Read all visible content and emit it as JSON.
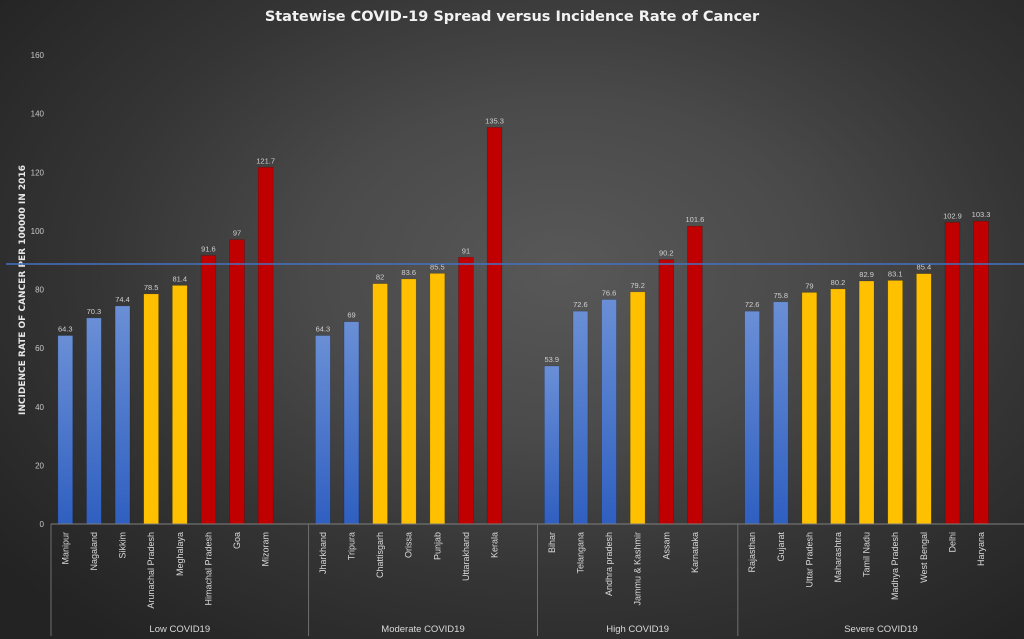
{
  "chart_data": {
    "type": "bar",
    "title": "Statewise COVID-19 Spread versus Incidence Rate of Cancer",
    "xlabel": "",
    "ylabel": "INCIDENCE RATE OF CANCER PER 100000 IN 2016",
    "ylim": [
      0,
      160
    ],
    "yticks": [
      0,
      20,
      40,
      60,
      80,
      100,
      120,
      140,
      160
    ],
    "grid": false,
    "legend": "none",
    "reference_line": {
      "value": 88.7,
      "color": "#4472c4"
    },
    "colors": {
      "blue": "#4472c4",
      "yellow": "#ffc000",
      "red": "#c00000"
    },
    "groups": [
      {
        "name": "Low COVID19",
        "bars": [
          {
            "category": "Manipur",
            "value": 64.3,
            "color": "blue"
          },
          {
            "category": "Nagaland",
            "value": 70.3,
            "color": "blue"
          },
          {
            "category": "Sikkim",
            "value": 74.4,
            "color": "blue"
          },
          {
            "category": "Arunachal Pradesh",
            "value": 78.5,
            "color": "yellow"
          },
          {
            "category": "Meghalaya",
            "value": 81.4,
            "color": "yellow"
          },
          {
            "category": "Himachal Pradesh",
            "value": 91.6,
            "color": "red"
          },
          {
            "category": "Goa",
            "value": 97,
            "color": "red"
          },
          {
            "category": "Mizoram",
            "value": 121.7,
            "color": "red"
          }
        ]
      },
      {
        "name": "Moderate COVID19",
        "bars": [
          {
            "category": "Jharkhand",
            "value": 64.3,
            "color": "blue"
          },
          {
            "category": "Tripura",
            "value": 69,
            "color": "blue"
          },
          {
            "category": "Chattisgarh",
            "value": 82,
            "color": "yellow"
          },
          {
            "category": "Orissa",
            "value": 83.6,
            "color": "yellow"
          },
          {
            "category": "Punjab",
            "value": 85.5,
            "color": "yellow"
          },
          {
            "category": "Uttarakhand",
            "value": 91,
            "color": "red"
          },
          {
            "category": "Kerala",
            "value": 135.3,
            "color": "red"
          }
        ]
      },
      {
        "name": "High COVID19",
        "bars": [
          {
            "category": "Bihar",
            "value": 53.9,
            "color": "blue"
          },
          {
            "category": "Telangana",
            "value": 72.6,
            "color": "blue"
          },
          {
            "category": "Andhra pradesh",
            "value": 76.6,
            "color": "blue"
          },
          {
            "category": "Jammu & Kashmir",
            "value": 79.2,
            "color": "yellow"
          },
          {
            "category": "Assam",
            "value": 90.2,
            "color": "red"
          },
          {
            "category": "Karnataka",
            "value": 101.6,
            "color": "red"
          }
        ]
      },
      {
        "name": "Severe COVID19",
        "bars": [
          {
            "category": "Rajasthan",
            "value": 72.6,
            "color": "blue"
          },
          {
            "category": "Gujarat",
            "value": 75.8,
            "color": "blue"
          },
          {
            "category": "Uttar Pradesh",
            "value": 79,
            "color": "yellow"
          },
          {
            "category": "Maharashtra",
            "value": 80.2,
            "color": "yellow"
          },
          {
            "category": "Tamil Nadu",
            "value": 82.9,
            "color": "yellow"
          },
          {
            "category": "Madhya Pradesh",
            "value": 83.1,
            "color": "yellow"
          },
          {
            "category": "West Bengal",
            "value": 85.4,
            "color": "yellow"
          },
          {
            "category": "Delhi",
            "value": 102.9,
            "color": "red"
          },
          {
            "category": "Haryana",
            "value": 103.3,
            "color": "red"
          }
        ]
      }
    ]
  }
}
